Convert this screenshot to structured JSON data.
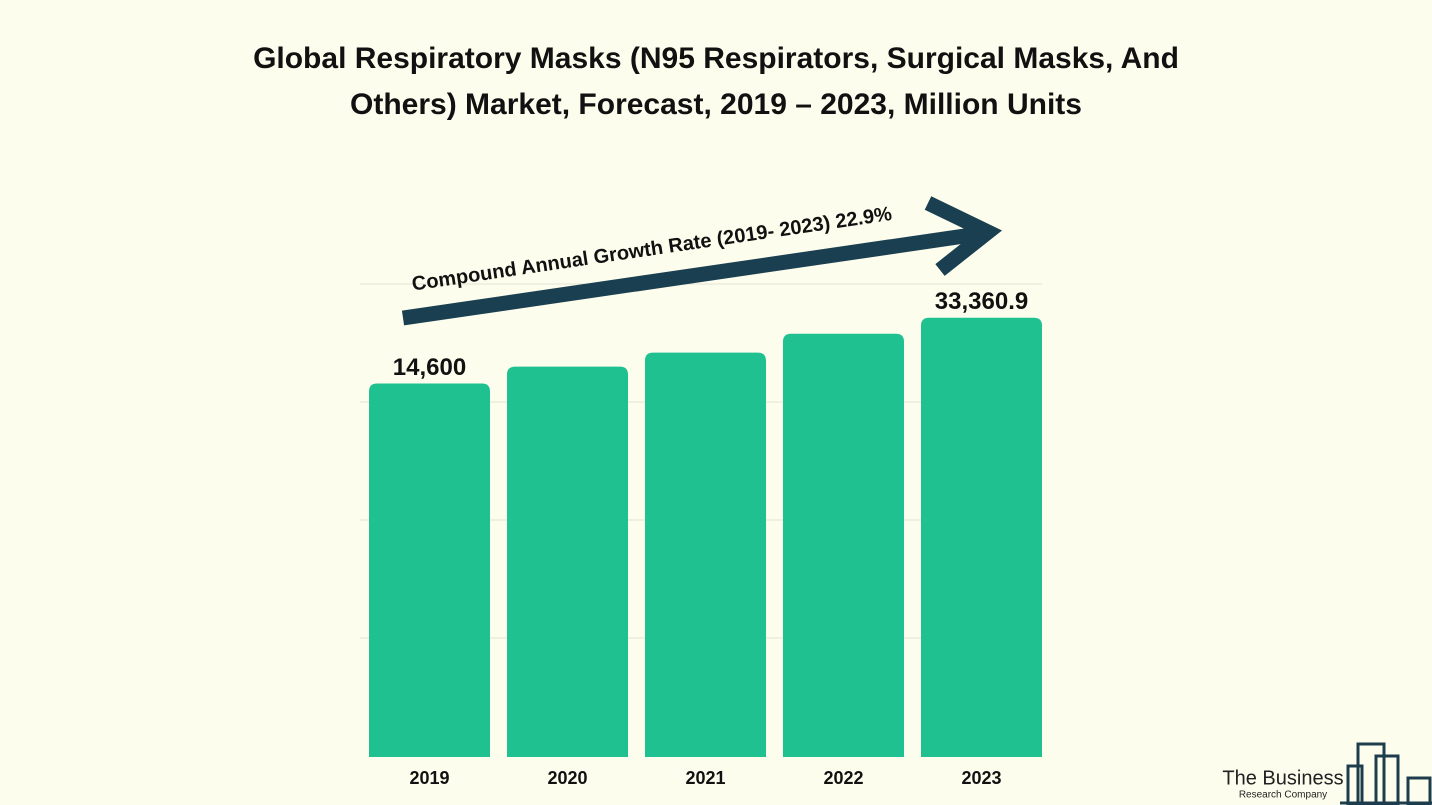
{
  "chart_data": {
    "type": "bar",
    "title": "Global Respiratory Masks (N95 Respirators, Surgical Masks, And Others) Market, Forecast, 2019 – 2023, Million Units",
    "annotation": "Compound Annual Growth Rate (2019- 2023) 22.9%",
    "categories": [
      "2019",
      "2020",
      "2021",
      "2022",
      "2023"
    ],
    "values": [
      14600,
      19400,
      23400,
      28800,
      33360.9
    ],
    "value_labels": [
      "14,600",
      null,
      null,
      null,
      "33,360.9"
    ],
    "color": "#20c190",
    "ylim": [
      -92000,
      43000
    ],
    "grid": true
  },
  "logo": {
    "name": "The Business",
    "tagline": "Research Company"
  }
}
